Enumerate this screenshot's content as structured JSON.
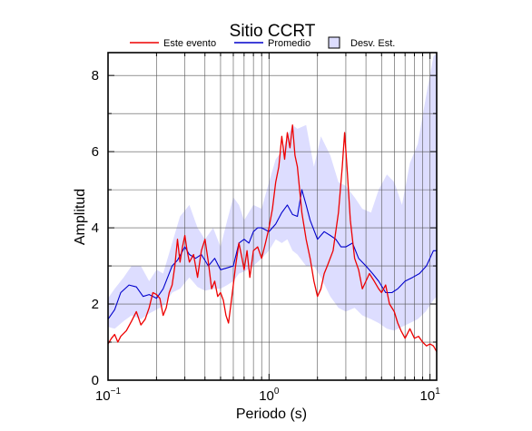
{
  "chart_data": {
    "type": "line",
    "title": "Sitio CCRT",
    "xlabel": "Periodo (s)",
    "ylabel": "Amplitud",
    "x_scale": "log",
    "xlim": [
      0.1,
      11
    ],
    "ylim": [
      0,
      8.6
    ],
    "grid": true,
    "legend_position": "top",
    "x_ticks": [
      {
        "base": "10",
        "exp": "−1",
        "value": 0.1
      },
      {
        "base": "10",
        "exp": "0",
        "value": 1
      },
      {
        "base": "10",
        "exp": "1",
        "value": 10
      }
    ],
    "y_ticks": [
      {
        "label": "0",
        "value": 0
      },
      {
        "label": "2",
        "value": 2
      },
      {
        "label": "4",
        "value": 4
      },
      {
        "label": "6",
        "value": 6
      },
      {
        "label": "8",
        "value": 8
      }
    ],
    "legend": [
      {
        "label": "Este evento",
        "kind": "line",
        "color": "#ee0000"
      },
      {
        "label": "Promedio",
        "kind": "line",
        "color": "#0000cc"
      },
      {
        "label": "Desv. Est.",
        "kind": "box",
        "color": "#ddddff"
      }
    ],
    "band": {
      "name": "Desv. Est.",
      "color": "#ddddff",
      "x": [
        0.1,
        0.11,
        0.125,
        0.14,
        0.16,
        0.18,
        0.2,
        0.22,
        0.25,
        0.28,
        0.32,
        0.36,
        0.4,
        0.45,
        0.5,
        0.55,
        0.6,
        0.65,
        0.7,
        0.8,
        0.9,
        1.0,
        1.1,
        1.2,
        1.3,
        1.4,
        1.5,
        1.7,
        1.9,
        2.1,
        2.4,
        2.7,
        3.0,
        3.4,
        3.8,
        4.3,
        4.8,
        5.4,
        6.0,
        6.7,
        7.5,
        8.4,
        9.4,
        10.5,
        11
      ],
      "upper": [
        2.15,
        2.4,
        2.7,
        3.0,
        3.0,
        2.6,
        2.9,
        2.8,
        3.6,
        4.3,
        4.6,
        4.0,
        3.7,
        4.0,
        3.5,
        4.2,
        4.8,
        4.6,
        4.2,
        4.6,
        4.5,
        5.2,
        5.8,
        6.0,
        6.4,
        6.7,
        6.6,
        6.7,
        5.6,
        6.4,
        5.9,
        5.2,
        5.1,
        4.8,
        4.5,
        4.4,
        5.0,
        5.4,
        5.2,
        4.6,
        5.7,
        6.2,
        7.4,
        8.5,
        8.6
      ],
      "lower": [
        1.4,
        1.35,
        1.55,
        1.7,
        1.6,
        1.75,
        1.85,
        1.95,
        2.3,
        2.4,
        2.7,
        2.45,
        2.35,
        2.4,
        2.4,
        2.5,
        2.6,
        2.8,
        2.85,
        3.0,
        3.2,
        3.4,
        3.7,
        3.6,
        3.7,
        3.4,
        3.3,
        3.0,
        3.0,
        2.7,
        2.2,
        1.9,
        1.8,
        1.9,
        1.7,
        1.6,
        1.5,
        1.35,
        1.3,
        1.4,
        1.5,
        1.6,
        1.8,
        2.1,
        2.2
      ]
    },
    "series": [
      {
        "name": "Promedio",
        "color": "#0000cc",
        "x": [
          0.1,
          0.11,
          0.12,
          0.135,
          0.15,
          0.165,
          0.18,
          0.2,
          0.22,
          0.25,
          0.27,
          0.3,
          0.32,
          0.35,
          0.38,
          0.42,
          0.46,
          0.5,
          0.55,
          0.6,
          0.65,
          0.7,
          0.75,
          0.8,
          0.85,
          0.9,
          1.0,
          1.1,
          1.2,
          1.3,
          1.4,
          1.5,
          1.6,
          1.7,
          1.8,
          2.0,
          2.2,
          2.4,
          2.6,
          2.8,
          3.0,
          3.3,
          3.6,
          4.0,
          4.4,
          4.8,
          5.3,
          5.8,
          6.3,
          7.0,
          7.8,
          8.6,
          9.5,
          10.5,
          11
        ],
        "values": [
          1.6,
          1.85,
          2.3,
          2.5,
          2.45,
          2.2,
          2.25,
          2.15,
          2.4,
          3.0,
          3.15,
          3.5,
          3.3,
          3.2,
          3.3,
          3.0,
          3.2,
          2.9,
          2.95,
          3.0,
          3.6,
          3.7,
          3.6,
          3.9,
          4.0,
          4.0,
          3.9,
          4.1,
          4.4,
          4.6,
          4.35,
          4.3,
          5.0,
          4.6,
          4.2,
          3.7,
          3.9,
          3.8,
          3.7,
          3.5,
          3.5,
          3.6,
          3.2,
          3.0,
          2.8,
          2.6,
          2.3,
          2.3,
          2.4,
          2.6,
          2.7,
          2.8,
          3.0,
          3.4,
          3.4
        ]
      },
      {
        "name": "Este evento",
        "color": "#ee0000",
        "x": [
          0.1,
          0.105,
          0.11,
          0.115,
          0.12,
          0.13,
          0.14,
          0.15,
          0.16,
          0.17,
          0.18,
          0.19,
          0.2,
          0.21,
          0.22,
          0.23,
          0.24,
          0.25,
          0.26,
          0.27,
          0.28,
          0.29,
          0.3,
          0.31,
          0.32,
          0.34,
          0.36,
          0.38,
          0.4,
          0.42,
          0.44,
          0.46,
          0.48,
          0.5,
          0.52,
          0.54,
          0.56,
          0.58,
          0.6,
          0.62,
          0.65,
          0.68,
          0.7,
          0.73,
          0.76,
          0.8,
          0.85,
          0.9,
          0.95,
          1.0,
          1.05,
          1.1,
          1.15,
          1.2,
          1.25,
          1.3,
          1.35,
          1.4,
          1.45,
          1.5,
          1.6,
          1.7,
          1.8,
          1.9,
          2.0,
          2.1,
          2.2,
          2.3,
          2.5,
          2.7,
          2.85,
          2.95,
          3.05,
          3.2,
          3.4,
          3.6,
          3.8,
          4.0,
          4.2,
          4.5,
          4.8,
          5.0,
          5.3,
          5.6,
          6.0,
          6.3,
          6.6,
          7.0,
          7.5,
          8.0,
          8.5,
          9.0,
          9.5,
          10.0,
          10.5,
          11.0
        ],
        "values": [
          0.95,
          1.1,
          1.2,
          1.0,
          1.15,
          1.3,
          1.55,
          1.8,
          1.45,
          1.6,
          1.9,
          2.3,
          2.25,
          2.15,
          1.7,
          1.9,
          2.3,
          2.5,
          3.0,
          3.7,
          3.1,
          3.5,
          3.8,
          3.4,
          3.1,
          3.3,
          2.7,
          3.4,
          3.7,
          3.1,
          2.4,
          2.6,
          2.2,
          2.3,
          2.1,
          1.7,
          1.5,
          2.0,
          2.5,
          3.0,
          3.6,
          3.2,
          2.9,
          3.4,
          2.7,
          3.4,
          3.5,
          3.2,
          3.6,
          4.0,
          4.5,
          5.2,
          5.6,
          6.4,
          5.8,
          6.5,
          6.1,
          6.7,
          5.9,
          5.6,
          4.4,
          3.7,
          3.2,
          2.6,
          2.2,
          2.4,
          2.8,
          3.0,
          3.4,
          4.4,
          5.6,
          6.5,
          5.6,
          4.2,
          3.2,
          2.9,
          2.4,
          2.6,
          2.8,
          2.6,
          2.4,
          2.3,
          2.5,
          2.0,
          1.8,
          1.5,
          1.3,
          1.1,
          1.35,
          1.1,
          1.15,
          1.0,
          0.9,
          0.95,
          0.9,
          0.75
        ]
      }
    ]
  }
}
